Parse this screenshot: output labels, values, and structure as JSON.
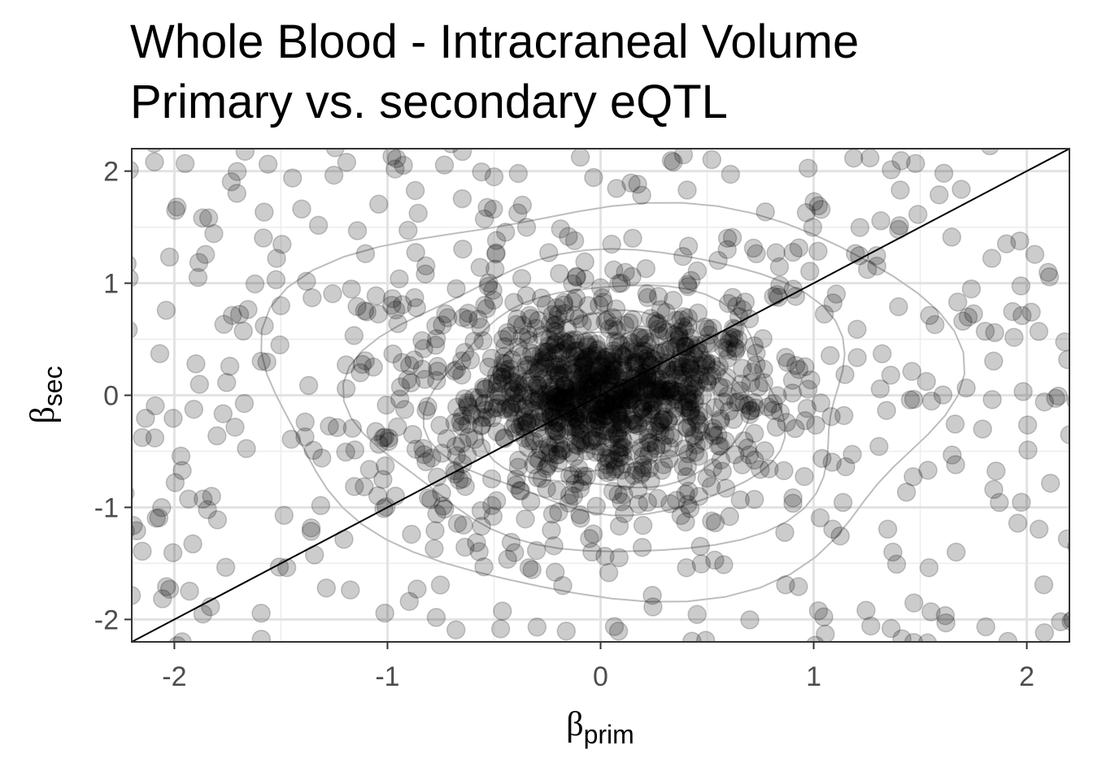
{
  "chart_data": {
    "type": "scatter",
    "title": "Whole Blood - Intracraneal Volume",
    "subtitle": "Primary vs. secondary eQTL",
    "xlabel": {
      "symbol": "β",
      "subscript": "prim"
    },
    "ylabel": {
      "symbol": "β",
      "subscript": "sec"
    },
    "xlim": [
      -2.2,
      2.2
    ],
    "ylim": [
      -2.2,
      2.2
    ],
    "x_ticks": [
      -2,
      -1,
      0,
      1,
      2
    ],
    "y_ticks": [
      -2,
      -1,
      0,
      1,
      2
    ],
    "x_tick_labels": [
      "-2",
      "-1",
      "0",
      "1",
      "2"
    ],
    "y_tick_labels": [
      "-2",
      "-1",
      "0",
      "1",
      "2"
    ],
    "grid": true,
    "reference_line": {
      "slope": 1,
      "intercept": 0,
      "color": "#000000"
    },
    "density_contours": true,
    "point_color": "#000000",
    "point_opacity": 0.2,
    "contour_color": "#bdbdbd",
    "n_points": 1500,
    "point_distribution": {
      "core_sd": [
        0.28,
        0.32
      ],
      "core_weight": 0.35,
      "mid_sd": [
        0.55,
        0.6
      ],
      "mid_weight": 0.4,
      "wide_range": [
        -2.25,
        2.25
      ],
      "wide_weight": 0.25
    },
    "contour_levels": [
      {
        "rx": 0.18,
        "ry": 0.25,
        "cx": 0.05,
        "cy": -0.1
      },
      {
        "rx": 0.32,
        "ry": 0.42,
        "cx": 0.05,
        "cy": -0.08
      },
      {
        "rx": 0.47,
        "ry": 0.6,
        "cx": 0.05,
        "cy": -0.08
      },
      {
        "rx": 0.62,
        "ry": 0.78,
        "cx": 0.05,
        "cy": -0.08
      },
      {
        "rx": 0.82,
        "ry": 1.02,
        "cx": 0.05,
        "cy": -0.05
      },
      {
        "rx": 1.15,
        "ry": 1.35,
        "cx": 0.05,
        "cy": -0.05
      },
      {
        "rx": 1.6,
        "ry": 1.75,
        "cx": 0.05,
        "cy": 0.0
      }
    ]
  }
}
